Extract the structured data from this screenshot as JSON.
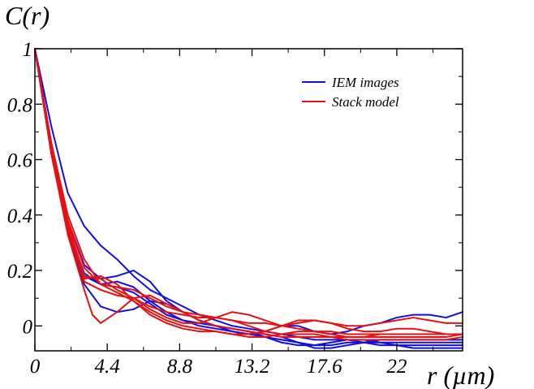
{
  "colors": {
    "iem": "#1010e0",
    "stack": "#e81010",
    "axis": "#000000",
    "background": "#ffffff"
  },
  "chart_data": {
    "type": "line",
    "xlabel": "r (µm)",
    "ylabel": "C(r)",
    "xlim": [
      0,
      26
    ],
    "ylim": [
      -0.09,
      1.0
    ],
    "x_ticks": [
      0,
      4.4,
      8.8,
      13.2,
      17.6,
      22
    ],
    "x_tick_labels": [
      "0",
      "4.4",
      "8.8",
      "13.2",
      "17.6",
      "22"
    ],
    "y_ticks": [
      0,
      0.2,
      0.4,
      0.6,
      0.8,
      1
    ],
    "y_tick_labels": [
      "0",
      "0.2",
      "0.4",
      "0.6",
      "0.8",
      "1"
    ],
    "grid": false,
    "legend_position": "top-right",
    "legend": [
      {
        "label": "IEM images",
        "color": "#1010e0"
      },
      {
        "label": "Stack model",
        "color": "#e81010"
      }
    ],
    "series": [
      {
        "group": "IEM images",
        "color": "#1010e0",
        "points": [
          [
            0,
            1.0
          ],
          [
            1,
            0.72
          ],
          [
            2,
            0.48
          ],
          [
            3,
            0.36
          ],
          [
            4,
            0.29
          ],
          [
            5,
            0.24
          ],
          [
            6,
            0.18
          ],
          [
            7,
            0.13
          ],
          [
            8,
            0.1
          ],
          [
            9,
            0.07
          ],
          [
            10,
            0.04
          ],
          [
            11,
            0.02
          ],
          [
            12,
            0.0
          ],
          [
            13,
            -0.01
          ],
          [
            14,
            -0.02
          ],
          [
            15,
            -0.03
          ],
          [
            16,
            -0.04
          ],
          [
            17,
            -0.05
          ],
          [
            18,
            -0.05
          ],
          [
            19,
            -0.05
          ],
          [
            20,
            -0.06
          ],
          [
            21,
            -0.06
          ],
          [
            22,
            -0.06
          ],
          [
            23,
            -0.06
          ],
          [
            24,
            -0.06
          ],
          [
            25,
            -0.06
          ],
          [
            26,
            -0.06
          ]
        ]
      },
      {
        "group": "IEM images",
        "color": "#1010e0",
        "points": [
          [
            0,
            1.0
          ],
          [
            1,
            0.66
          ],
          [
            2,
            0.38
          ],
          [
            3,
            0.22
          ],
          [
            4,
            0.17
          ],
          [
            5,
            0.18
          ],
          [
            6,
            0.2
          ],
          [
            7,
            0.16
          ],
          [
            8,
            0.09
          ],
          [
            9,
            0.05
          ],
          [
            10,
            0.02
          ],
          [
            11,
            0.0
          ],
          [
            12,
            -0.01
          ],
          [
            13,
            -0.02
          ],
          [
            14,
            -0.04
          ],
          [
            15,
            -0.05
          ],
          [
            16,
            -0.06
          ],
          [
            17,
            -0.07
          ],
          [
            18,
            -0.07
          ],
          [
            19,
            -0.06
          ],
          [
            20,
            -0.06
          ],
          [
            21,
            -0.07
          ],
          [
            22,
            -0.07
          ],
          [
            23,
            -0.07
          ],
          [
            24,
            -0.07
          ],
          [
            25,
            -0.07
          ],
          [
            26,
            -0.07
          ]
        ]
      },
      {
        "group": "IEM images",
        "color": "#1010e0",
        "points": [
          [
            0,
            1.0
          ],
          [
            1,
            0.64
          ],
          [
            2,
            0.36
          ],
          [
            3,
            0.18
          ],
          [
            4,
            0.15
          ],
          [
            5,
            0.16
          ],
          [
            6,
            0.14
          ],
          [
            7,
            0.09
          ],
          [
            8,
            0.05
          ],
          [
            9,
            0.02
          ],
          [
            10,
            0.0
          ],
          [
            11,
            -0.01
          ],
          [
            12,
            -0.02
          ],
          [
            13,
            -0.03
          ],
          [
            14,
            -0.04
          ],
          [
            15,
            -0.06
          ],
          [
            16,
            -0.07
          ],
          [
            17,
            -0.07
          ],
          [
            18,
            -0.06
          ],
          [
            19,
            -0.05
          ],
          [
            20,
            -0.05
          ],
          [
            21,
            -0.06
          ],
          [
            22,
            -0.07
          ],
          [
            23,
            -0.08
          ],
          [
            24,
            -0.08
          ],
          [
            25,
            -0.08
          ],
          [
            26,
            -0.08
          ]
        ]
      },
      {
        "group": "IEM images",
        "color": "#1010e0",
        "points": [
          [
            0,
            1.0
          ],
          [
            1,
            0.62
          ],
          [
            2,
            0.34
          ],
          [
            3,
            0.15
          ],
          [
            4,
            0.07
          ],
          [
            5,
            0.05
          ],
          [
            6,
            0.06
          ],
          [
            7,
            0.09
          ],
          [
            8,
            0.08
          ],
          [
            9,
            0.05
          ],
          [
            10,
            0.02
          ],
          [
            11,
            0.0
          ],
          [
            12,
            -0.01
          ],
          [
            13,
            -0.02
          ],
          [
            14,
            -0.03
          ],
          [
            15,
            -0.04
          ],
          [
            16,
            -0.06
          ],
          [
            17,
            -0.08
          ],
          [
            18,
            -0.08
          ],
          [
            19,
            -0.07
          ],
          [
            20,
            -0.06
          ],
          [
            21,
            -0.05
          ],
          [
            22,
            -0.05
          ],
          [
            23,
            -0.05
          ],
          [
            24,
            -0.05
          ],
          [
            25,
            -0.05
          ],
          [
            26,
            -0.05
          ]
        ]
      },
      {
        "group": "IEM images",
        "color": "#1010e0",
        "points": [
          [
            0,
            1.0
          ],
          [
            1,
            0.63
          ],
          [
            2,
            0.35
          ],
          [
            3,
            0.19
          ],
          [
            4,
            0.15
          ],
          [
            5,
            0.14
          ],
          [
            6,
            0.12
          ],
          [
            7,
            0.08
          ],
          [
            8,
            0.04
          ],
          [
            9,
            0.02
          ],
          [
            10,
            0.01
          ],
          [
            11,
            0.0
          ],
          [
            12,
            -0.02
          ],
          [
            13,
            -0.03
          ],
          [
            14,
            -0.02
          ],
          [
            15,
            0.0
          ],
          [
            16,
            0.0
          ],
          [
            17,
            -0.02
          ],
          [
            18,
            -0.03
          ],
          [
            19,
            -0.02
          ],
          [
            20,
            0.0
          ],
          [
            21,
            0.01
          ],
          [
            22,
            0.03
          ],
          [
            23,
            0.04
          ],
          [
            24,
            0.04
          ],
          [
            25,
            0.03
          ],
          [
            26,
            0.05
          ]
        ]
      },
      {
        "group": "Stack model",
        "color": "#e81010",
        "points": [
          [
            0,
            1.0
          ],
          [
            1,
            0.65
          ],
          [
            2,
            0.38
          ],
          [
            3,
            0.21
          ],
          [
            4,
            0.15
          ],
          [
            5,
            0.14
          ],
          [
            6,
            0.13
          ],
          [
            7,
            0.1
          ],
          [
            8,
            0.07
          ],
          [
            9,
            0.05
          ],
          [
            10,
            0.04
          ],
          [
            11,
            0.03
          ],
          [
            12,
            0.02
          ],
          [
            13,
            0.0
          ],
          [
            14,
            -0.02
          ],
          [
            15,
            -0.03
          ],
          [
            16,
            -0.03
          ],
          [
            17,
            -0.03
          ],
          [
            18,
            -0.04
          ],
          [
            19,
            -0.04
          ],
          [
            20,
            -0.04
          ],
          [
            21,
            -0.04
          ],
          [
            22,
            -0.04
          ],
          [
            23,
            -0.04
          ],
          [
            24,
            -0.04
          ],
          [
            25,
            -0.04
          ],
          [
            26,
            -0.03
          ]
        ]
      },
      {
        "group": "Stack model",
        "color": "#e81010",
        "points": [
          [
            0,
            1.0
          ],
          [
            1,
            0.62
          ],
          [
            2,
            0.33
          ],
          [
            3,
            0.13
          ],
          [
            3.5,
            0.04
          ],
          [
            4,
            0.01
          ],
          [
            5,
            0.05
          ],
          [
            6,
            0.1
          ],
          [
            7,
            0.11
          ],
          [
            8,
            0.08
          ],
          [
            9,
            0.05
          ],
          [
            10,
            0.02
          ],
          [
            11,
            0.0
          ],
          [
            12,
            -0.01
          ],
          [
            13,
            -0.02
          ],
          [
            14,
            -0.03
          ],
          [
            15,
            -0.04
          ],
          [
            16,
            -0.04
          ],
          [
            17,
            -0.04
          ],
          [
            18,
            -0.04
          ],
          [
            19,
            -0.05
          ],
          [
            20,
            -0.05
          ],
          [
            21,
            -0.05
          ],
          [
            22,
            -0.05
          ],
          [
            23,
            -0.05
          ],
          [
            24,
            -0.05
          ],
          [
            25,
            -0.05
          ],
          [
            26,
            -0.04
          ]
        ]
      },
      {
        "group": "Stack model",
        "color": "#e81010",
        "points": [
          [
            0,
            1.0
          ],
          [
            1,
            0.64
          ],
          [
            2,
            0.37
          ],
          [
            3,
            0.18
          ],
          [
            4,
            0.17
          ],
          [
            5,
            0.13
          ],
          [
            6,
            0.1
          ],
          [
            7,
            0.06
          ],
          [
            8,
            0.03
          ],
          [
            9,
            0.01
          ],
          [
            10,
            0.01
          ],
          [
            11,
            0.03
          ],
          [
            12,
            0.05
          ],
          [
            13,
            0.04
          ],
          [
            14,
            0.02
          ],
          [
            15,
            0.0
          ],
          [
            16,
            0.01
          ],
          [
            17,
            0.02
          ],
          [
            18,
            0.01
          ],
          [
            19,
            -0.01
          ],
          [
            20,
            -0.02
          ],
          [
            21,
            -0.02
          ],
          [
            22,
            -0.01
          ],
          [
            23,
            -0.01
          ],
          [
            24,
            -0.02
          ],
          [
            25,
            -0.03
          ],
          [
            26,
            -0.03
          ]
        ]
      },
      {
        "group": "Stack model",
        "color": "#e81010",
        "points": [
          [
            0,
            1.0
          ],
          [
            1,
            0.63
          ],
          [
            2,
            0.35
          ],
          [
            3,
            0.16
          ],
          [
            4,
            0.13
          ],
          [
            5,
            0.11
          ],
          [
            6,
            0.1
          ],
          [
            7,
            0.07
          ],
          [
            8,
            0.05
          ],
          [
            9,
            0.04
          ],
          [
            10,
            0.03
          ],
          [
            11,
            0.03
          ],
          [
            12,
            0.02
          ],
          [
            13,
            0.01
          ],
          [
            14,
            0.01
          ],
          [
            15,
            0.0
          ],
          [
            16,
            -0.01
          ],
          [
            17,
            -0.02
          ],
          [
            18,
            -0.02
          ],
          [
            19,
            -0.03
          ],
          [
            20,
            -0.03
          ],
          [
            21,
            -0.03
          ],
          [
            22,
            -0.03
          ],
          [
            23,
            -0.03
          ],
          [
            24,
            -0.03
          ],
          [
            25,
            -0.03
          ],
          [
            26,
            -0.03
          ]
        ]
      },
      {
        "group": "Stack model",
        "color": "#e81010",
        "points": [
          [
            0,
            1.0
          ],
          [
            1,
            0.66
          ],
          [
            2,
            0.4
          ],
          [
            3,
            0.24
          ],
          [
            4,
            0.15
          ],
          [
            5,
            0.12
          ],
          [
            6,
            0.09
          ],
          [
            7,
            0.05
          ],
          [
            8,
            0.02
          ],
          [
            9,
            0.0
          ],
          [
            10,
            -0.01
          ],
          [
            11,
            -0.02
          ],
          [
            12,
            -0.03
          ],
          [
            13,
            -0.03
          ],
          [
            14,
            -0.02
          ],
          [
            15,
            0.0
          ],
          [
            16,
            0.02
          ],
          [
            17,
            0.02
          ],
          [
            18,
            0.01
          ],
          [
            19,
            0.0
          ],
          [
            20,
            0.0
          ],
          [
            21,
            0.01
          ],
          [
            22,
            0.02
          ],
          [
            23,
            0.03
          ],
          [
            24,
            0.02
          ],
          [
            25,
            0.01
          ],
          [
            26,
            0.01
          ]
        ]
      },
      {
        "group": "Stack model",
        "color": "#e81010",
        "points": [
          [
            0,
            1.0
          ],
          [
            1,
            0.64
          ],
          [
            2,
            0.36
          ],
          [
            3,
            0.17
          ],
          [
            4,
            0.18
          ],
          [
            5,
            0.15
          ],
          [
            6,
            0.09
          ],
          [
            7,
            0.04
          ],
          [
            8,
            0.01
          ],
          [
            9,
            -0.01
          ],
          [
            10,
            -0.02
          ],
          [
            11,
            -0.02
          ],
          [
            12,
            -0.03
          ],
          [
            13,
            -0.04
          ],
          [
            14,
            -0.04
          ],
          [
            15,
            -0.03
          ],
          [
            16,
            -0.02
          ],
          [
            17,
            -0.02
          ],
          [
            18,
            -0.03
          ],
          [
            19,
            -0.04
          ],
          [
            20,
            -0.04
          ],
          [
            21,
            -0.03
          ],
          [
            22,
            -0.03
          ],
          [
            23,
            -0.03
          ],
          [
            24,
            -0.03
          ],
          [
            25,
            -0.03
          ],
          [
            26,
            -0.03
          ]
        ]
      }
    ]
  }
}
